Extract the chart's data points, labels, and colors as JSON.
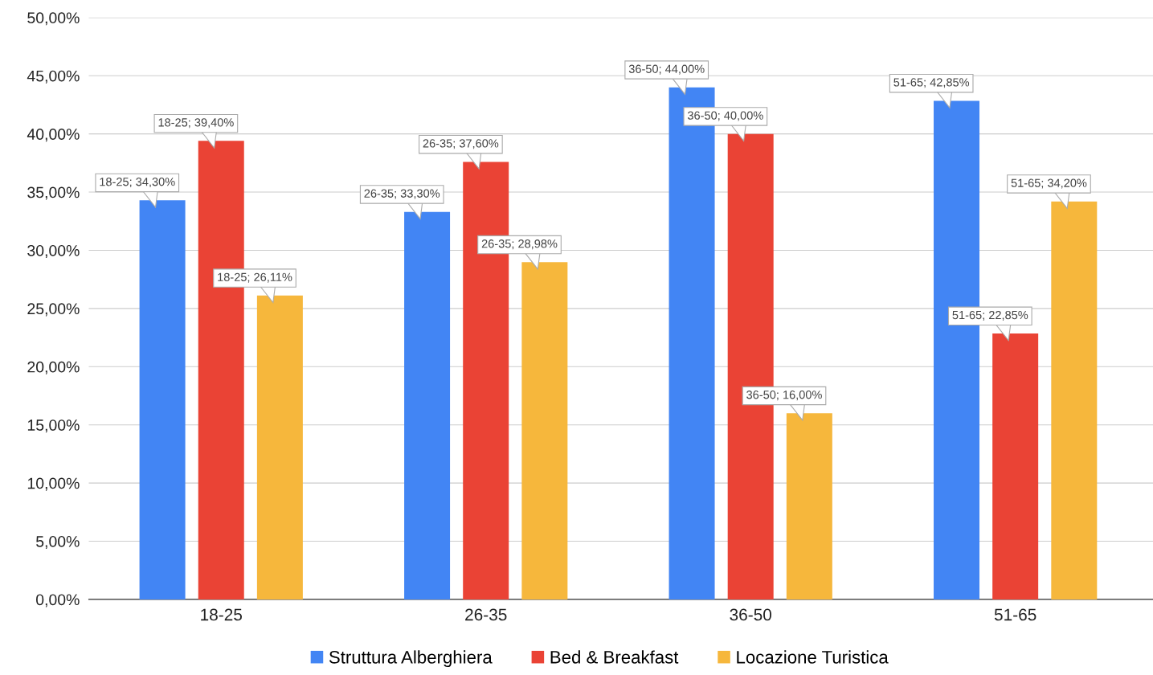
{
  "chart_data": {
    "type": "bar",
    "categories": [
      "18-25",
      "26-35",
      "36-50",
      "51-65"
    ],
    "series": [
      {
        "name": "Struttura Alberghiera",
        "color": "#4285f4",
        "values": [
          34.3,
          33.3,
          44.0,
          42.85
        ],
        "value_labels": [
          "18-25; 34,30%",
          "26-35; 33,30%",
          "36-50; 44,00%",
          "51-65; 42,85%"
        ]
      },
      {
        "name": "Bed & Breakfast",
        "color": "#ea4335",
        "values": [
          39.4,
          37.6,
          40.0,
          22.85
        ],
        "value_labels": [
          "18-25; 39,40%",
          "26-35; 37,60%",
          "36-50; 40,00%",
          "51-65; 22,85%"
        ]
      },
      {
        "name": "Locazione Turistica",
        "color": "#f6b73c",
        "values": [
          26.11,
          28.98,
          16.0,
          34.2
        ],
        "value_labels": [
          "18-25; 26,11%",
          "26-35; 28,98%",
          "36-50; 16,00%",
          "51-65; 34,20%"
        ]
      }
    ],
    "ylim": [
      0,
      50
    ],
    "yticks": [
      {
        "value": 0,
        "label": "0,00%"
      },
      {
        "value": 5,
        "label": "5,00%"
      },
      {
        "value": 10,
        "label": "10,00%"
      },
      {
        "value": 15,
        "label": "15,00%"
      },
      {
        "value": 20,
        "label": "20,00%"
      },
      {
        "value": 25,
        "label": "25,00%"
      },
      {
        "value": 30,
        "label": "30,00%"
      },
      {
        "value": 35,
        "label": "35,00%"
      },
      {
        "value": 40,
        "label": "40,00%"
      },
      {
        "value": 45,
        "label": "45,00%"
      },
      {
        "value": 50,
        "label": "50,00%"
      }
    ],
    "grid": "y",
    "legend": "bottom"
  }
}
